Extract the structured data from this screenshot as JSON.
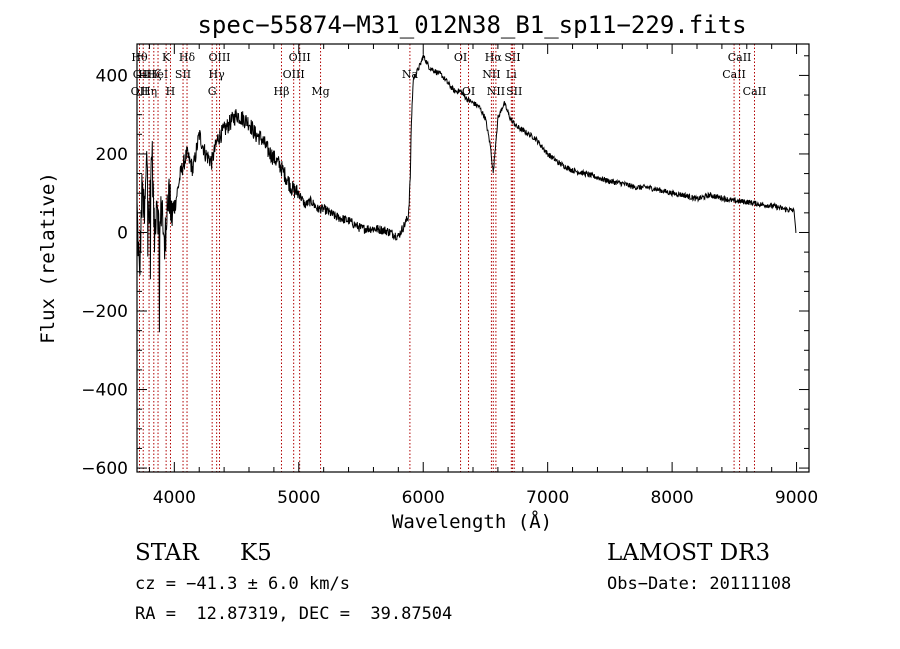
{
  "chart_data": {
    "type": "line",
    "title": "spec−55874−M31_012N38_B1_sp11−229.fits",
    "xlabel": "Wavelength (Å)",
    "ylabel": "Flux (relative)",
    "xlim": [
      3700,
      9100
    ],
    "ylim": [
      -610,
      480
    ],
    "x_ticks": [
      4000,
      5000,
      6000,
      7000,
      8000,
      9000
    ],
    "x_tick_labels": [
      "4000",
      "5000",
      "6000",
      "7000",
      "8000",
      "9000"
    ],
    "y_ticks": [
      -600,
      -400,
      -200,
      0,
      200,
      400
    ],
    "y_tick_labels": [
      "−600",
      "−400",
      "−200",
      "0",
      "200",
      "400"
    ],
    "series": [
      {
        "name": "flux",
        "x": [
          3700,
          3720,
          3740,
          3760,
          3780,
          3800,
          3820,
          3840,
          3860,
          3880,
          3900,
          3920,
          3940,
          3960,
          3980,
          4000,
          4050,
          4100,
          4150,
          4200,
          4250,
          4300,
          4350,
          4400,
          4450,
          4500,
          4550,
          4600,
          4650,
          4700,
          4750,
          4800,
          4850,
          4900,
          4950,
          5000,
          5050,
          5100,
          5150,
          5200,
          5300,
          5400,
          5500,
          5600,
          5700,
          5800,
          5850,
          5880,
          5895,
          5905,
          5920,
          5950,
          5980,
          6000,
          6050,
          6100,
          6150,
          6200,
          6250,
          6300,
          6350,
          6400,
          6450,
          6500,
          6540,
          6563,
          6580,
          6600,
          6650,
          6700,
          6750,
          6800,
          6900,
          7000,
          7100,
          7200,
          7300,
          7400,
          7500,
          7600,
          7700,
          7800,
          7900,
          8000,
          8100,
          8200,
          8300,
          8400,
          8500,
          8600,
          8700,
          8800,
          8900,
          8980,
          8995,
          9000
        ],
        "y": [
          60,
          -120,
          110,
          30,
          200,
          50,
          220,
          -20,
          110,
          -30,
          90,
          -60,
          70,
          80,
          40,
          60,
          150,
          200,
          160,
          250,
          200,
          180,
          240,
          260,
          280,
          300,
          290,
          280,
          250,
          240,
          210,
          190,
          170,
          140,
          110,
          100,
          70,
          80,
          60,
          60,
          40,
          30,
          10,
          10,
          5,
          -10,
          20,
          40,
          130,
          280,
          390,
          410,
          430,
          450,
          420,
          410,
          400,
          380,
          360,
          360,
          340,
          330,
          320,
          290,
          220,
          150,
          220,
          290,
          330,
          290,
          270,
          260,
          240,
          200,
          175,
          158,
          150,
          140,
          130,
          125,
          115,
          115,
          108,
          100,
          95,
          85,
          95,
          88,
          80,
          78,
          72,
          68,
          60,
          55,
          0,
          0
        ]
      }
    ],
    "lines": [
      {
        "x": 3720,
        "labels": [
          {
            "row": 1,
            "text": "Hθ"
          },
          {
            "row": 2,
            "text": "OI"
          },
          {
            "row": 3,
            "text": "OII"
          }
        ]
      },
      {
        "x": 3750,
        "labels": [
          {
            "row": 2,
            "text": "H"
          }
        ]
      },
      {
        "x": 3797,
        "labels": [
          {
            "row": 3,
            "text": "Hη"
          }
        ]
      },
      {
        "x": 3835,
        "labels": [
          {
            "row": 2,
            "text": "Hζ"
          }
        ]
      },
      {
        "x": 3869,
        "labels": [
          {
            "row": 2,
            "text": "HeI"
          }
        ]
      },
      {
        "x": 3934,
        "labels": [
          {
            "row": 1,
            "text": "K"
          }
        ]
      },
      {
        "x": 3969,
        "labels": [
          {
            "row": 3,
            "text": "H"
          }
        ]
      },
      {
        "x": 4070,
        "labels": [
          {
            "row": 2,
            "text": "SII"
          }
        ]
      },
      {
        "x": 4102,
        "labels": [
          {
            "row": 1,
            "text": "Hδ"
          }
        ]
      },
      {
        "x": 4304,
        "labels": [
          {
            "row": 3,
            "text": "G"
          }
        ]
      },
      {
        "x": 4340,
        "labels": [
          {
            "row": 2,
            "text": "Hγ"
          }
        ]
      },
      {
        "x": 4363,
        "labels": [
          {
            "row": 1,
            "text": "OIII"
          }
        ]
      },
      {
        "x": 4861,
        "labels": [
          {
            "row": 3,
            "text": "Hβ"
          }
        ]
      },
      {
        "x": 4959,
        "labels": [
          {
            "row": 2,
            "text": "OIII"
          }
        ]
      },
      {
        "x": 5007,
        "labels": [
          {
            "row": 1,
            "text": "OIII"
          }
        ]
      },
      {
        "x": 5175,
        "labels": [
          {
            "row": 3,
            "text": "Mg"
          }
        ]
      },
      {
        "x": 5893,
        "labels": [
          {
            "row": 2,
            "text": "Na"
          }
        ]
      },
      {
        "x": 6300,
        "labels": [
          {
            "row": 1,
            "text": "OI"
          }
        ]
      },
      {
        "x": 6364,
        "labels": [
          {
            "row": 3,
            "text": "OI"
          }
        ]
      },
      {
        "x": 6548,
        "labels": [
          {
            "row": 2,
            "text": "NII"
          }
        ]
      },
      {
        "x": 6563,
        "labels": [
          {
            "row": 1,
            "text": "Hα"
          }
        ]
      },
      {
        "x": 6584,
        "labels": [
          {
            "row": 3,
            "text": "NII"
          }
        ]
      },
      {
        "x": 6708,
        "labels": [
          {
            "row": 2,
            "text": "Li"
          }
        ]
      },
      {
        "x": 6717,
        "labels": [
          {
            "row": 1,
            "text": "SII"
          }
        ]
      },
      {
        "x": 6731,
        "labels": [
          {
            "row": 3,
            "text": "SII"
          }
        ]
      },
      {
        "x": 8498,
        "labels": [
          {
            "row": 2,
            "text": "CaII"
          }
        ]
      },
      {
        "x": 8542,
        "labels": [
          {
            "row": 1,
            "text": "CaII"
          }
        ]
      },
      {
        "x": 8662,
        "labels": [
          {
            "row": 3,
            "text": "CaII"
          }
        ]
      }
    ]
  },
  "info": {
    "class_label": "STAR",
    "subclass": "K5",
    "survey": "LAMOST DR3",
    "cz": "cz = −41.3 ± 6.0 km/s",
    "obs_date": "Obs−Date: 20111108",
    "radec": "RA =  12.87319, DEC =  39.87504"
  },
  "colors": {
    "line_markers": "#b00000",
    "spectrum": "#000000"
  }
}
